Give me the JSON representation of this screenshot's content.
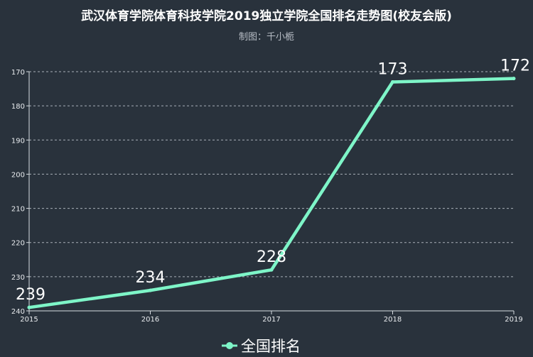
{
  "chart_data": {
    "type": "line",
    "title": "武汉体育学院体育科技学院2019独立学院全国排名走势图(校友会版)",
    "subtitle": "制图：千小栀",
    "x": [
      "2015",
      "2016",
      "2017",
      "2018",
      "2019"
    ],
    "series": [
      {
        "name": "全国排名",
        "values": [
          239,
          234,
          228,
          173,
          172
        ]
      }
    ],
    "y_ticks": [
      170,
      180,
      190,
      200,
      210,
      220,
      230,
      240
    ],
    "ylim": [
      170,
      240
    ],
    "y_inverted": true,
    "grid": "horizontal-dashed",
    "legend_position": "bottom-center"
  },
  "colors": {
    "background": "#29323c",
    "line": "#7ef5c8",
    "grid": "#a9b0b8",
    "axis": "#d8dde2"
  }
}
